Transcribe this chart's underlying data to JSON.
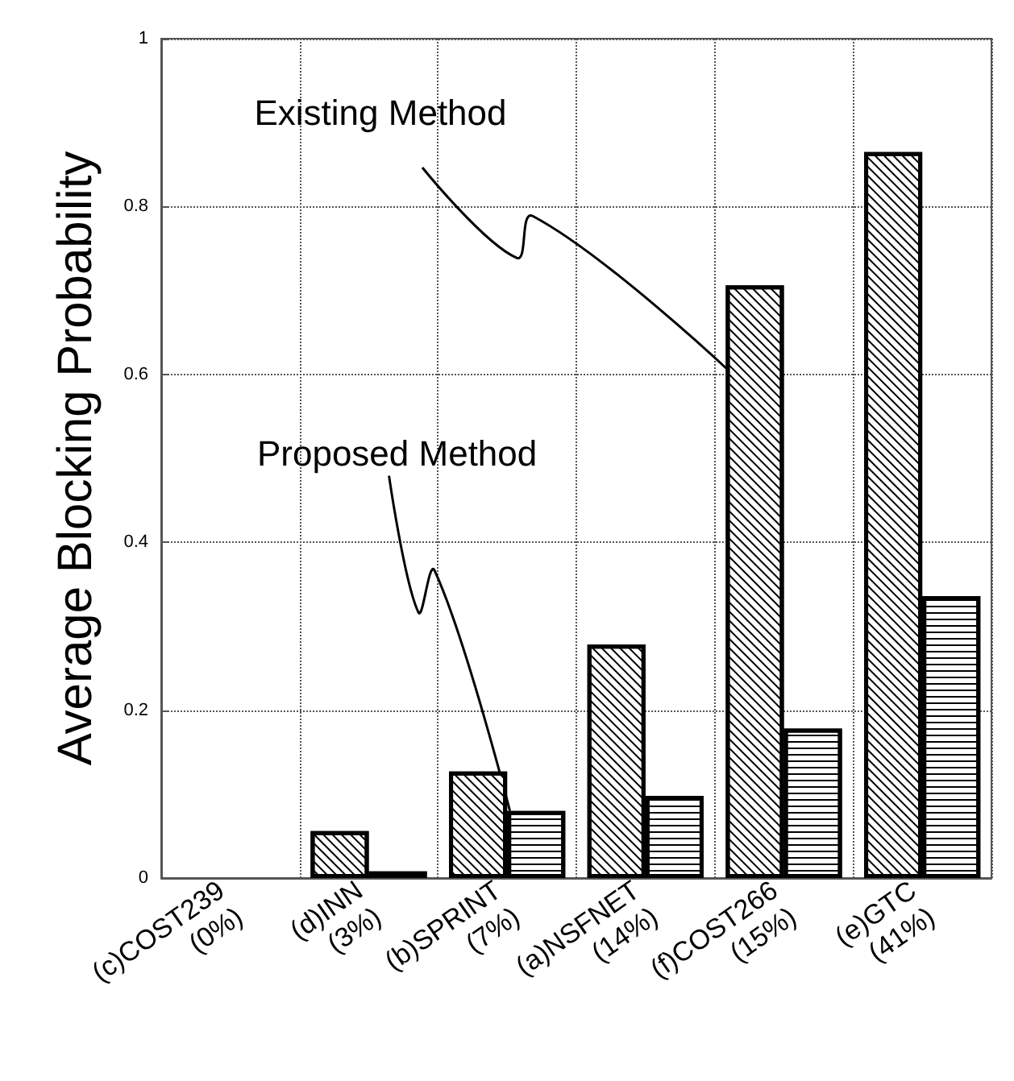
{
  "chart_data": {
    "type": "bar",
    "ylabel": "Average Blocking Probability",
    "categories": [
      "(c)COST239\n(0%)",
      "(d)INN\n(3%)",
      "(b)SPRINT\n(7%)",
      "(a)NSFNET\n(14%)",
      "(f)COST266\n(15%)",
      "(e)GTC\n(41%)"
    ],
    "series": [
      {
        "color": "#ffffff",
        "values": [
          0,
          0.056,
          0.127,
          0.278,
          0.706,
          0.865
        ]
      },
      {
        "color": "#ffffff",
        "values": [
          0,
          0.008,
          0.08,
          0.098,
          0.178,
          0.336
        ]
      }
    ],
    "ylim": [
      0,
      1
    ],
    "yticks": [
      0,
      0.2,
      0.4,
      0.6,
      0.8,
      1
    ],
    "grid": true,
    "annotations": [
      "Existing Method",
      {
        "text": "Proposed Method",
        "x": "(b)SPRINT\n(7%)",
        "y": 0.08
      }
    ]
  }
}
